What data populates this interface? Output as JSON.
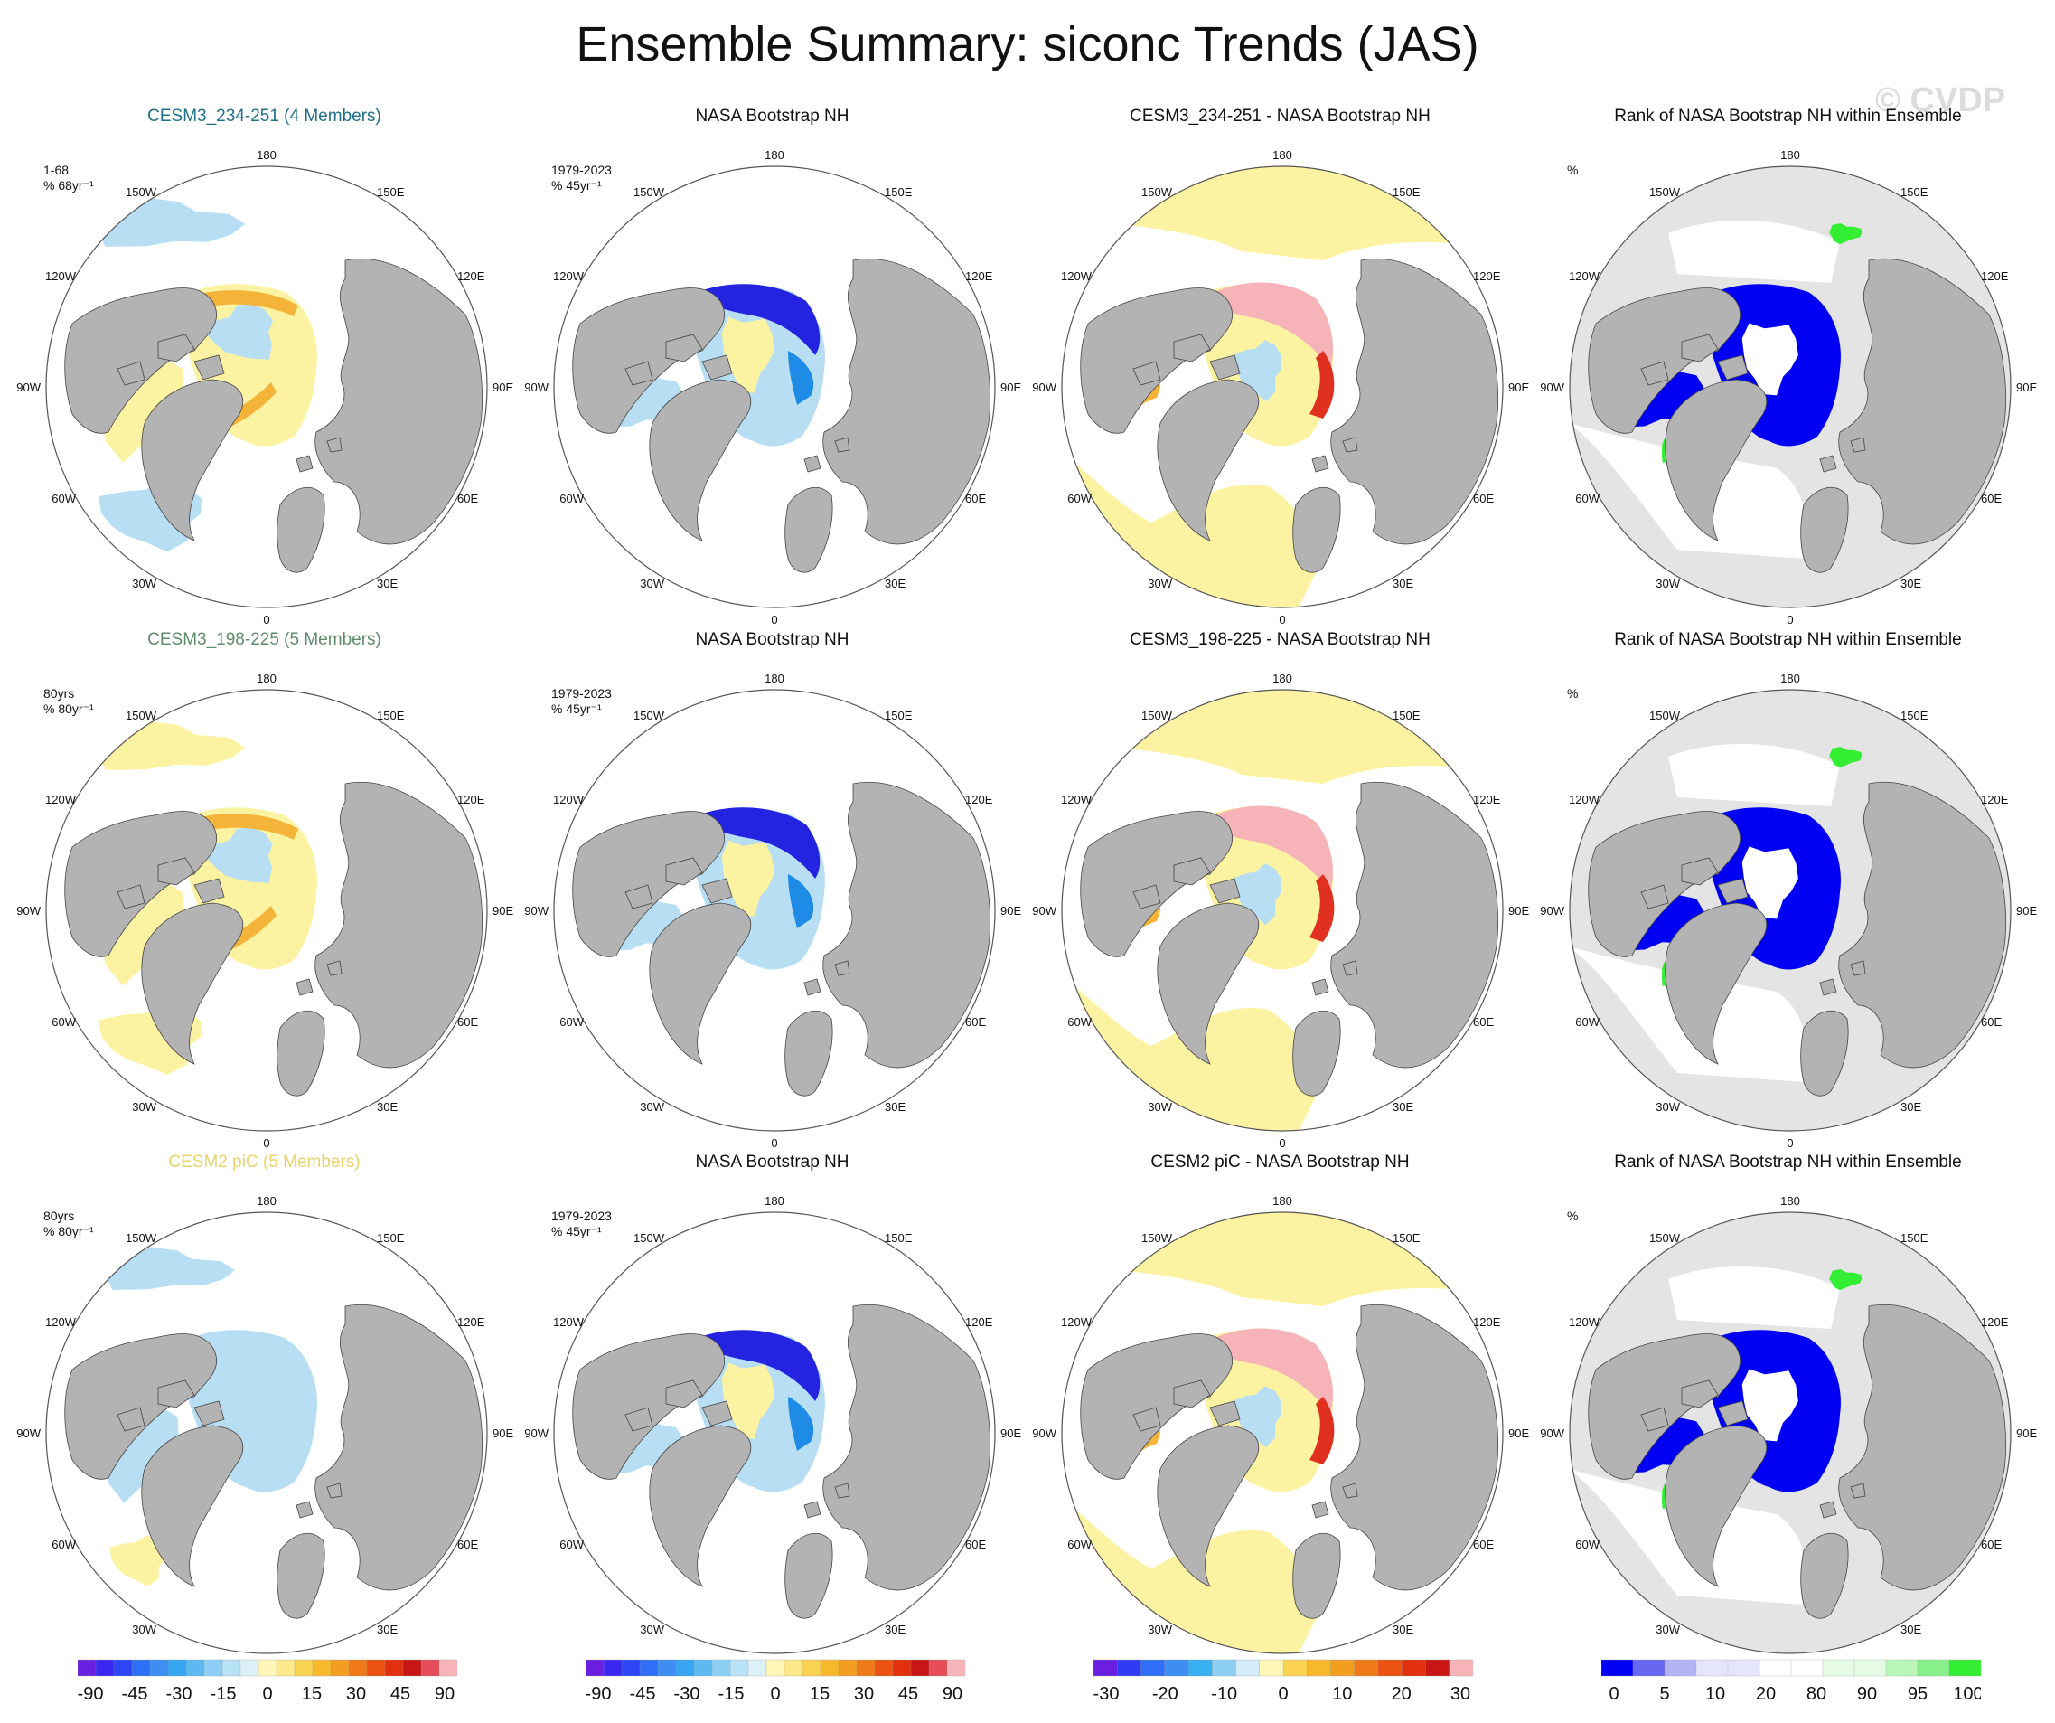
{
  "title": "Ensemble Summary: siconc Trends (JAS)",
  "watermark": "© CVDP",
  "map_labels": {
    "top": "180",
    "bottom": "0",
    "left_upper": "120W",
    "left_mid": "90W",
    "left_lower": "60W",
    "right_upper": "120E",
    "right_mid": "90E",
    "right_lower": "60E",
    "upper_left": "150W",
    "upper_right": "150E",
    "lower_left": "30W",
    "lower_right": "30E"
  },
  "colors": {
    "land": "#b3b3b3",
    "ocean": "#ffffff",
    "rank_ocean": "#e4e4e4",
    "light_blue": "#b7def2",
    "light_yellow": "#fbf3a2",
    "orange": "#f4b43a",
    "blue": "#1e8ce6",
    "dark_blue": "#2323e0",
    "pink": "#f7b4b8",
    "red": "#e03020",
    "rank_blue": "#0000f5",
    "rank_green": "#33ee33",
    "title_blue": "#1f6f8b",
    "title_green": "#5f8c6a",
    "title_yellow": "#e8d36a"
  },
  "rows": [
    {
      "panels": [
        {
          "title": "CESM3_234-251 (4 Members)",
          "label": "1-68\n% 68yr⁻¹",
          "kind": "model",
          "variant": 1
        },
        {
          "title": "NASA Bootstrap NH",
          "label": "1979-2023\n% 45yr⁻¹",
          "kind": "obs"
        },
        {
          "title": "CESM3_234-251 - NASA Bootstrap NH",
          "label": "",
          "kind": "diff"
        },
        {
          "title": "Rank of NASA Bootstrap NH within Ensemble",
          "label": "%",
          "kind": "rank"
        }
      ]
    },
    {
      "panels": [
        {
          "title": "CESM3_198-225 (5 Members)",
          "label": "80yrs\n% 80yr⁻¹",
          "kind": "model",
          "variant": 2
        },
        {
          "title": "NASA Bootstrap NH",
          "label": "1979-2023\n% 45yr⁻¹",
          "kind": "obs"
        },
        {
          "title": "CESM3_198-225 - NASA Bootstrap NH",
          "label": "",
          "kind": "diff"
        },
        {
          "title": "Rank of NASA Bootstrap NH within Ensemble",
          "label": "%",
          "kind": "rank"
        }
      ]
    },
    {
      "panels": [
        {
          "title": "CESM2 piC (5 Members)",
          "label": "80yrs\n% 80yr⁻¹",
          "kind": "model",
          "variant": 3
        },
        {
          "title": "NASA Bootstrap NH",
          "label": "1979-2023\n% 45yr⁻¹",
          "kind": "obs"
        },
        {
          "title": "CESM2 piC - NASA Bootstrap NH",
          "label": "",
          "kind": "diff"
        },
        {
          "title": "Rank of NASA Bootstrap NH within Ensemble",
          "label": "%",
          "kind": "rank"
        }
      ]
    }
  ],
  "colorbars": [
    {
      "name": "trend",
      "colors": [
        "#6a1ee0",
        "#3a28f0",
        "#2d45f5",
        "#2f6ef6",
        "#3d8df3",
        "#37a6f2",
        "#5cbaf1",
        "#8dcef4",
        "#b7e2f6",
        "#dcf0fa",
        "#fff6b8",
        "#fde88a",
        "#f9d34f",
        "#f6b92c",
        "#f39d21",
        "#ef7a17",
        "#ea5311",
        "#e0300d",
        "#c81515",
        "#e54e59",
        "#f7b4b8"
      ],
      "labels": [
        "-90",
        "-45",
        "-30",
        "-15",
        "0",
        "15",
        "30",
        "45",
        "90"
      ]
    },
    {
      "name": "trend",
      "colors": [
        "#6a1ee0",
        "#3a28f0",
        "#2d45f5",
        "#2f6ef6",
        "#3d8df3",
        "#37a6f2",
        "#5cbaf1",
        "#8dcef4",
        "#b7e2f6",
        "#dcf0fa",
        "#fff6b8",
        "#fde88a",
        "#f9d34f",
        "#f6b92c",
        "#f39d21",
        "#ef7a17",
        "#ea5311",
        "#e0300d",
        "#c81515",
        "#e54e59",
        "#f7b4b8"
      ],
      "labels": [
        "-90",
        "-45",
        "-30",
        "-15",
        "0",
        "15",
        "30",
        "45",
        "90"
      ]
    },
    {
      "name": "diff",
      "colors": [
        "#6a1ee0",
        "#2d3cf2",
        "#2f6ef6",
        "#3d8df3",
        "#37b0f2",
        "#8dcef4",
        "#d4ecf8",
        "#fff6b8",
        "#f9d34f",
        "#f6b92c",
        "#f39d21",
        "#ef7a17",
        "#ea5311",
        "#e0300d",
        "#c81515",
        "#f7b4b8"
      ],
      "labels": [
        "-30",
        "-20",
        "-10",
        "0",
        "10",
        "20",
        "30"
      ]
    },
    {
      "name": "rank",
      "colors": [
        "#0000f5",
        "#6666f0",
        "#b3b3f3",
        "#e6e6fa",
        "#e6e6fa",
        "#ffffff",
        "#ffffff",
        "#e6fbe6",
        "#e6fbe6",
        "#b9f5b9",
        "#88f088",
        "#33ee33"
      ],
      "labels": [
        "0",
        "5",
        "10",
        "20",
        "80",
        "90",
        "95",
        "100"
      ]
    }
  ]
}
